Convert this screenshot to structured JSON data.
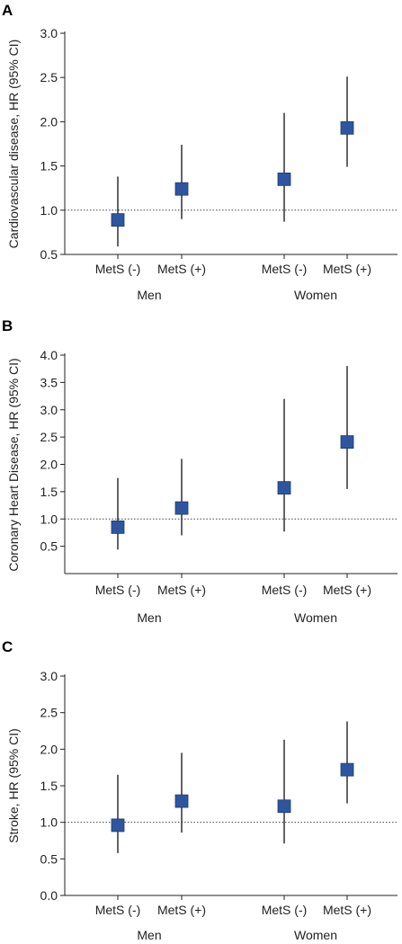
{
  "chart_data": [
    {
      "panel": "A",
      "type": "scatter",
      "ylabel": "Cardiovascular disease, HR (95% CI)",
      "ylim": [
        0.5,
        3.0
      ],
      "yticks": [
        "0.5",
        "1.0",
        "1.5",
        "2.0",
        "2.5",
        "3.0"
      ],
      "yticks_values": [
        0.5,
        1.0,
        1.5,
        2.0,
        2.5,
        3.0
      ],
      "reference_line": 1.0,
      "groups": [
        "Men",
        "Women"
      ],
      "categories": [
        "MetS (-)",
        "MetS (+)",
        "MetS (-)",
        "MetS (+)"
      ],
      "values": [
        0.89,
        1.24,
        1.35,
        1.93
      ],
      "ci_low": [
        0.59,
        0.9,
        0.87,
        1.49
      ],
      "ci_high": [
        1.38,
        1.74,
        2.1,
        2.51
      ],
      "marker_color": "#2E56A0"
    },
    {
      "panel": "B",
      "type": "scatter",
      "ylabel": "Coronary Heart Disease, HR (95% CI)",
      "ylim": [
        0,
        4.0
      ],
      "yticks": [
        "0.5",
        "1.0",
        "1.5",
        "2.0",
        "2.5",
        "3.0",
        "3.5",
        "4.0"
      ],
      "yticks_values": [
        0.5,
        1.0,
        1.5,
        2.0,
        2.5,
        3.0,
        3.5,
        4.0
      ],
      "reference_line": 1.0,
      "groups": [
        "Men",
        "Women"
      ],
      "categories": [
        "MetS (-)",
        "MetS (+)",
        "MetS (-)",
        "MetS (+)"
      ],
      "values": [
        0.85,
        1.2,
        1.57,
        2.41
      ],
      "ci_low": [
        0.44,
        0.7,
        0.77,
        1.55
      ],
      "ci_high": [
        1.75,
        2.1,
        3.2,
        3.8
      ],
      "marker_color": "#2E56A0"
    },
    {
      "panel": "C",
      "type": "scatter",
      "ylabel": "Stroke, HR (95% CI)",
      "ylim": [
        0,
        3.0
      ],
      "yticks": [
        "0.0",
        "0.5",
        "1.0",
        "1.5",
        "2.0",
        "2.5",
        "3.0"
      ],
      "yticks_values": [
        0.0,
        0.5,
        1.0,
        1.5,
        2.0,
        2.5,
        3.0
      ],
      "reference_line": 1.0,
      "groups": [
        "Men",
        "Women"
      ],
      "categories": [
        "MetS (-)",
        "MetS (+)",
        "MetS (-)",
        "MetS (+)"
      ],
      "values": [
        0.96,
        1.29,
        1.22,
        1.72
      ],
      "ci_low": [
        0.58,
        0.86,
        0.71,
        1.26
      ],
      "ci_high": [
        1.65,
        1.95,
        2.13,
        2.38
      ],
      "marker_color": "#2E56A0"
    }
  ]
}
